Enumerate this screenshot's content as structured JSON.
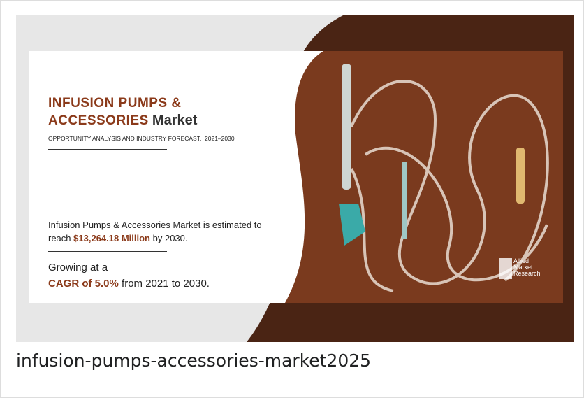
{
  "banner": {
    "title_line1": "INFUSION PUMPS &",
    "title_line2_bold": "ACCESSORIES",
    "title_line2_rest": "Market",
    "subtitle": "OPPORTUNITY ANALYSIS AND INDUSTRY FORECAST,  2021–2030",
    "estimate_line1": "Infusion Pumps & Accessories Market is estimated to",
    "estimate_prefix": "reach",
    "estimate_value": "$13,264.18 Million",
    "estimate_suffix": "by 2030.",
    "growth_line1": "Growing at a",
    "growth_value": "CAGR of 5.0%",
    "growth_suffix": "from 2021 to 2030.",
    "logo": [
      "Allied",
      "Market",
      "Research"
    ]
  },
  "caption": "infusion-pumps-accessories-market2025"
}
